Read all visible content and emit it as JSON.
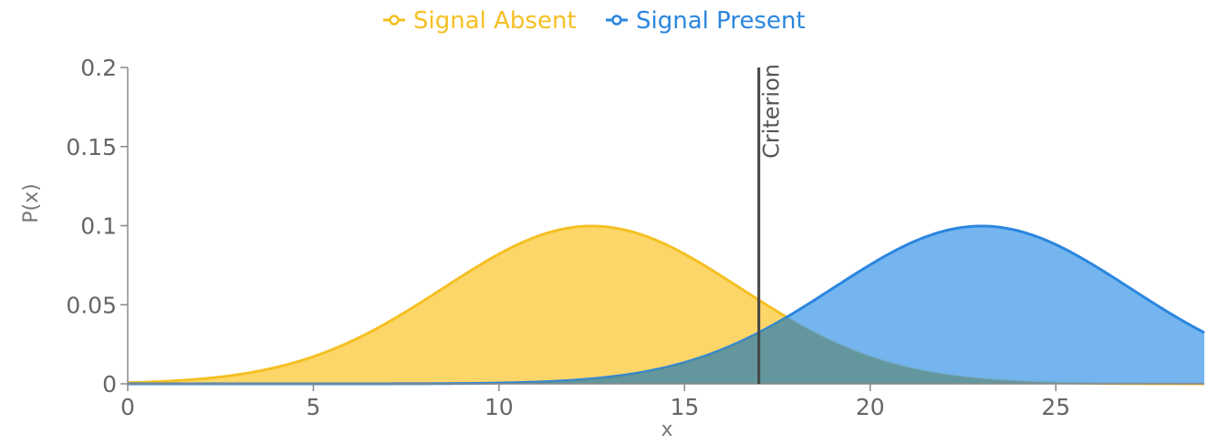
{
  "chart_data": {
    "type": "area",
    "title": "",
    "xlabel": "x",
    "ylabel": "P(x)",
    "xlim": [
      0,
      29
    ],
    "ylim": [
      0,
      0.2
    ],
    "x_ticks": [
      0,
      5,
      10,
      15,
      20,
      25
    ],
    "y_ticks": [
      0,
      0.05,
      0.1,
      0.15,
      0.2
    ],
    "x_tick_labels": [
      "0",
      "5",
      "10",
      "15",
      "20",
      "25"
    ],
    "y_tick_labels": [
      "0",
      "0.05",
      "0.1",
      "0.15",
      "0.2"
    ],
    "legend_position": "top-center",
    "grid": false,
    "series": [
      {
        "name": "Signal Absent",
        "color": "#F5C023",
        "fill": "#FDD35C",
        "mean": 12.5,
        "sd": 4,
        "x": [
          0,
          1,
          2,
          3,
          4,
          5,
          6,
          7,
          8,
          9,
          10,
          11,
          12,
          13,
          14,
          15,
          16,
          17,
          18,
          19,
          20,
          21,
          22,
          23,
          24,
          25,
          26,
          27,
          28,
          29
        ],
        "values": [
          0.0008,
          0.0016,
          0.003,
          0.0059,
          0.0103,
          0.0173,
          0.0265,
          0.0389,
          0.0532,
          0.0681,
          0.0823,
          0.0932,
          0.0992,
          0.0992,
          0.0932,
          0.0823,
          0.0681,
          0.0532,
          0.0389,
          0.0265,
          0.0173,
          0.0103,
          0.0059,
          0.003,
          0.0016,
          0.0008,
          0.0003,
          0.0001,
          0.0001,
          0.0
        ]
      },
      {
        "name": "Signal Present",
        "color": "#2B86DE",
        "fill": "#5CA8EC",
        "mean": 23,
        "sd": 4,
        "x": [
          0,
          1,
          2,
          3,
          4,
          5,
          6,
          7,
          8,
          9,
          10,
          11,
          12,
          13,
          14,
          15,
          16,
          17,
          18,
          19,
          20,
          21,
          22,
          23,
          24,
          25,
          26,
          27,
          28,
          29
        ],
        "values": [
          0.0,
          0.0,
          0.0,
          0.0,
          0.0,
          0.0,
          0.0,
          0.0,
          0.0001,
          0.0002,
          0.0005,
          0.0011,
          0.0023,
          0.0044,
          0.0079,
          0.0135,
          0.0216,
          0.0324,
          0.0457,
          0.0605,
          0.0753,
          0.088,
          0.0967,
          0.0997,
          0.0967,
          0.088,
          0.0753,
          0.0605,
          0.0457,
          0.0324
        ]
      }
    ],
    "annotations": [
      {
        "type": "vertical-line",
        "x": 17,
        "label": "Criterion",
        "color": "#444444"
      }
    ]
  }
}
